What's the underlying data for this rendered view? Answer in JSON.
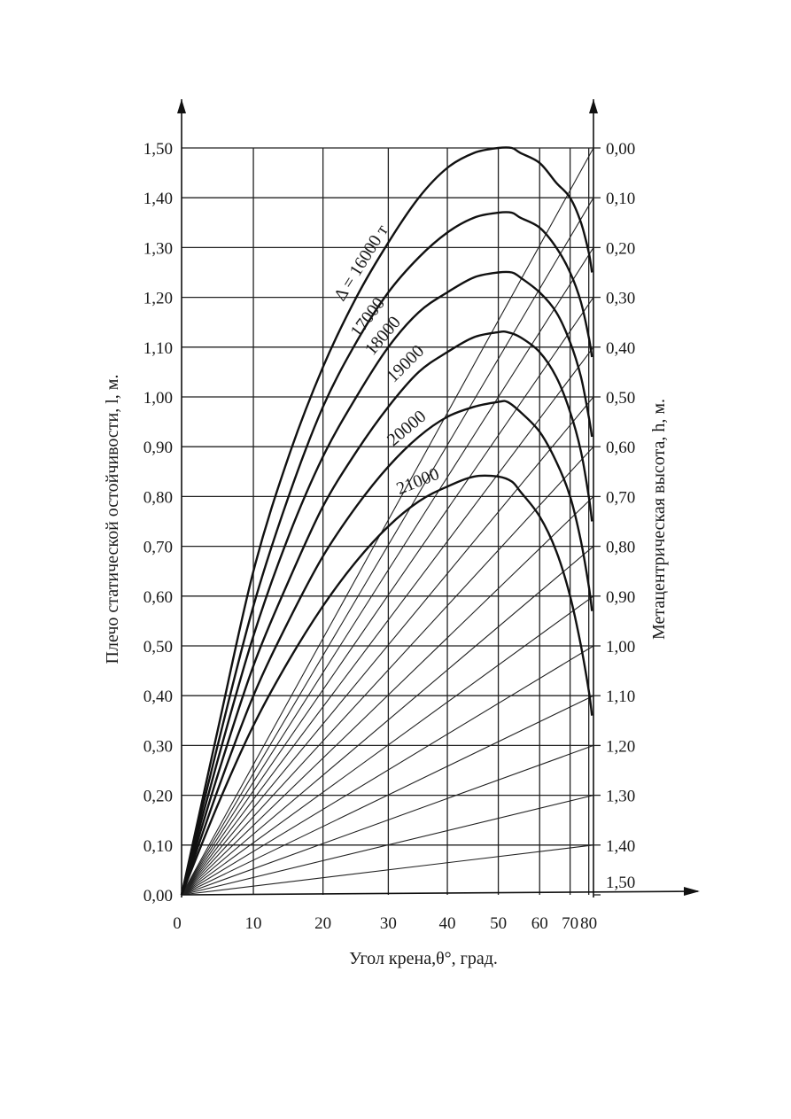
{
  "chart_data": {
    "type": "line",
    "title": "",
    "xlabel": "Угол крена,θ°, град.",
    "ylabel": "Плечо статической остойчивости, l, м.",
    "y2label": "Метацентрическая высота, h, м.",
    "x_ticks": [
      {
        "value": 0,
        "label": "0"
      },
      {
        "value": 10,
        "label": "10"
      },
      {
        "value": 20,
        "label": "20"
      },
      {
        "value": 30,
        "label": "30"
      },
      {
        "value": 40,
        "label": "40"
      },
      {
        "value": 50,
        "label": "50"
      },
      {
        "value": 60,
        "label": "60"
      },
      {
        "value": 70,
        "label": "70"
      },
      {
        "value": 80,
        "label": "80"
      }
    ],
    "xlim": [
      0,
      85
    ],
    "ylim": [
      0,
      1.5
    ],
    "y_ticks": [
      {
        "value": 1.5,
        "label": "1,50"
      },
      {
        "value": 1.4,
        "label": "1,40"
      },
      {
        "value": 1.3,
        "label": "1,30"
      },
      {
        "value": 1.2,
        "label": "1,20"
      },
      {
        "value": 1.1,
        "label": "1,10"
      },
      {
        "value": 1.0,
        "label": "1,00"
      },
      {
        "value": 0.9,
        "label": "0,90"
      },
      {
        "value": 0.8,
        "label": "0,80"
      },
      {
        "value": 0.7,
        "label": "0,70"
      },
      {
        "value": 0.6,
        "label": "0,60"
      },
      {
        "value": 0.5,
        "label": "0,50"
      },
      {
        "value": 0.4,
        "label": "0,40"
      },
      {
        "value": 0.3,
        "label": "0,30"
      },
      {
        "value": 0.2,
        "label": "0,20"
      },
      {
        "value": 0.1,
        "label": "0,10"
      },
      {
        "value": 0.0,
        "label": "0,00"
      }
    ],
    "y2_ticks": [
      {
        "value": 0.0,
        "label": "0,00"
      },
      {
        "value": 0.1,
        "label": "0,10"
      },
      {
        "value": 0.2,
        "label": "0,20"
      },
      {
        "value": 0.3,
        "label": "0,30"
      },
      {
        "value": 0.4,
        "label": "0,40"
      },
      {
        "value": 0.5,
        "label": "0,50"
      },
      {
        "value": 0.6,
        "label": "0,60"
      },
      {
        "value": 0.7,
        "label": "0,70"
      },
      {
        "value": 0.8,
        "label": "0,80"
      },
      {
        "value": 0.9,
        "label": "0,90"
      },
      {
        "value": 1.0,
        "label": "1,00"
      },
      {
        "value": 1.1,
        "label": "1,10"
      },
      {
        "value": 1.2,
        "label": "1,20"
      },
      {
        "value": 1.3,
        "label": "1,30"
      },
      {
        "value": 1.4,
        "label": "1,40"
      },
      {
        "value": 1.5,
        "label": "1,50"
      }
    ],
    "y2_note": "h scale reversed: h = 1.50 − l",
    "grid": true,
    "series": [
      {
        "name": "Δ = 16000 т",
        "x": [
          0,
          5,
          10,
          15,
          20,
          25,
          30,
          35,
          40,
          45,
          50,
          53,
          55,
          60,
          65,
          70,
          75,
          80,
          83
        ],
        "y": [
          0,
          0.33,
          0.65,
          0.88,
          1.06,
          1.2,
          1.31,
          1.4,
          1.46,
          1.49,
          1.5,
          1.5,
          1.49,
          1.47,
          1.43,
          1.4,
          1.35,
          1.29,
          1.25
        ]
      },
      {
        "name": "17000",
        "x": [
          0,
          5,
          10,
          15,
          20,
          25,
          30,
          35,
          40,
          45,
          50,
          53,
          55,
          60,
          65,
          70,
          75,
          80,
          83
        ],
        "y": [
          0,
          0.3,
          0.58,
          0.8,
          0.98,
          1.11,
          1.21,
          1.28,
          1.33,
          1.36,
          1.37,
          1.37,
          1.36,
          1.34,
          1.3,
          1.25,
          1.19,
          1.12,
          1.08
        ]
      },
      {
        "name": "18000",
        "x": [
          0,
          5,
          10,
          15,
          20,
          25,
          30,
          35,
          40,
          45,
          50,
          53,
          55,
          60,
          65,
          70,
          75,
          80,
          83
        ],
        "y": [
          0,
          0.27,
          0.52,
          0.72,
          0.88,
          1.0,
          1.1,
          1.17,
          1.21,
          1.24,
          1.25,
          1.25,
          1.24,
          1.21,
          1.17,
          1.11,
          1.04,
          0.96,
          0.92
        ]
      },
      {
        "name": "19000",
        "x": [
          0,
          5,
          10,
          15,
          20,
          25,
          30,
          35,
          40,
          45,
          50,
          52,
          55,
          60,
          65,
          70,
          75,
          80,
          83
        ],
        "y": [
          0,
          0.24,
          0.46,
          0.63,
          0.78,
          0.89,
          0.98,
          1.05,
          1.09,
          1.12,
          1.13,
          1.13,
          1.12,
          1.09,
          1.04,
          0.97,
          0.89,
          0.8,
          0.75
        ]
      },
      {
        "name": "20000",
        "x": [
          0,
          5,
          10,
          15,
          20,
          25,
          30,
          35,
          40,
          45,
          50,
          52,
          55,
          60,
          65,
          70,
          75,
          80,
          83
        ],
        "y": [
          0,
          0.21,
          0.4,
          0.55,
          0.68,
          0.78,
          0.86,
          0.92,
          0.96,
          0.98,
          0.99,
          0.99,
          0.97,
          0.93,
          0.87,
          0.8,
          0.71,
          0.62,
          0.57
        ]
      },
      {
        "name": "21000",
        "x": [
          0,
          5,
          10,
          15,
          20,
          25,
          30,
          35,
          40,
          45,
          50,
          53,
          55,
          60,
          65,
          70,
          75,
          80,
          83
        ],
        "y": [
          0,
          0.18,
          0.34,
          0.47,
          0.58,
          0.67,
          0.74,
          0.79,
          0.82,
          0.84,
          0.84,
          0.83,
          0.81,
          0.76,
          0.69,
          0.6,
          0.5,
          0.41,
          0.36
        ]
      }
    ]
  }
}
